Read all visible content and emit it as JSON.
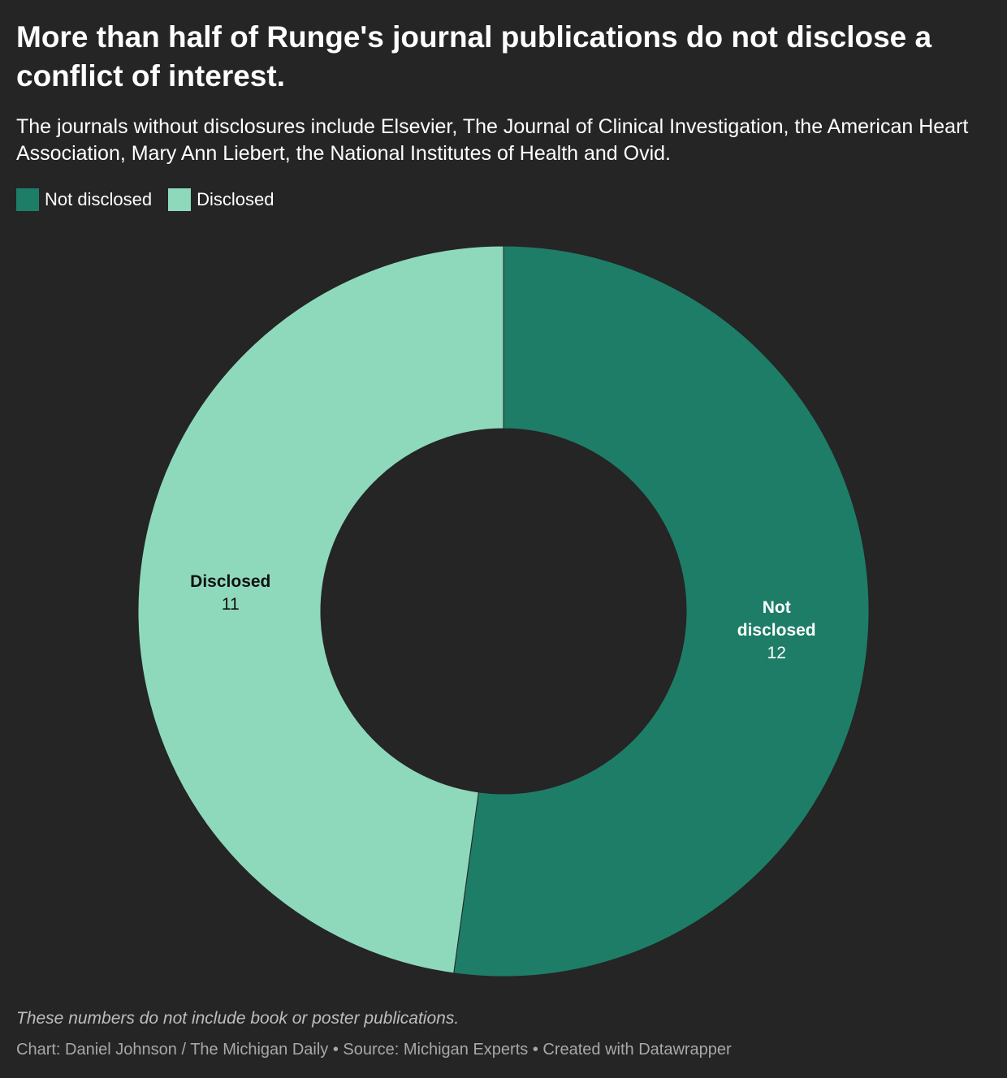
{
  "header": {
    "title": "More than half of Runge's journal publications do not disclose a conflict of interest.",
    "subtitle": "The journals without disclosures include Elsevier, The Journal of Clinical Investigation, the American Heart Association, Mary Ann Liebert, the National Institutes of Health and Ovid."
  },
  "legend": {
    "items": [
      {
        "label": "Not disclosed",
        "color": "#1e7d67"
      },
      {
        "label": "Disclosed",
        "color": "#8ed9bc"
      }
    ]
  },
  "chart_data": {
    "type": "pie",
    "variant": "donut",
    "title": "More than half of Runge's journal publications do not disclose a conflict of interest.",
    "slices": [
      {
        "label": "Not disclosed",
        "label_lines": [
          "Not",
          "disclosed"
        ],
        "value": 12,
        "color": "#1e7d67",
        "label_color": "#ffffff"
      },
      {
        "label": "Disclosed",
        "label_lines": [
          "Disclosed"
        ],
        "value": 11,
        "color": "#8ed9bc",
        "label_color": "#111111"
      }
    ],
    "legend_position": "top-left"
  },
  "footer": {
    "note": "These numbers do not include book or poster publications.",
    "credits": "Chart: Daniel Johnson / The Michigan Daily • Source: Michigan Experts • Created with Datawrapper"
  }
}
